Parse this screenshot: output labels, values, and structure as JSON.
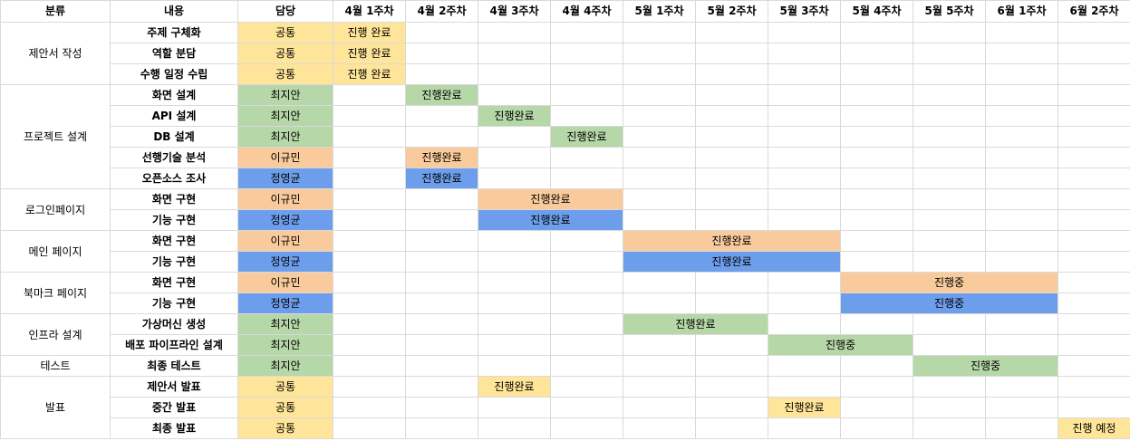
{
  "headers": [
    "분류",
    "내용",
    "담당",
    "4월 1주차",
    "4월 2주차",
    "4월 3주차",
    "4월 4주차",
    "5월 1주차",
    "5월 2주차",
    "5월 3주차",
    "5월 4주차",
    "5월 5주차",
    "6월 1주차",
    "6월 2주차"
  ],
  "colors": {
    "공통": "#ffe599",
    "최지안": "#b6d7a8",
    "이규민": "#f9cb9c",
    "정영균": "#6d9eeb"
  },
  "groups": [
    {
      "name": "제안서 작성",
      "tasks": [
        {
          "name": "주제 구체화",
          "owner": "공통",
          "start": 0,
          "span": 1,
          "status": "진행 완료"
        },
        {
          "name": "역할 분담",
          "owner": "공통",
          "start": 0,
          "span": 1,
          "status": "진행 완료"
        },
        {
          "name": "수행 일정 수립",
          "owner": "공통",
          "start": 0,
          "span": 1,
          "status": "진행 완료"
        }
      ]
    },
    {
      "name": "프로젝트 설계",
      "tasks": [
        {
          "name": "화면 설계",
          "owner": "최지안",
          "start": 1,
          "span": 1,
          "status": "진행완료"
        },
        {
          "name": "API 설계",
          "owner": "최지안",
          "start": 2,
          "span": 1,
          "status": "진행완료"
        },
        {
          "name": "DB 설계",
          "owner": "최지안",
          "start": 3,
          "span": 1,
          "status": "진행완료"
        },
        {
          "name": "선행기술 분석",
          "owner": "이규민",
          "start": 1,
          "span": 1,
          "status": "진행완료"
        },
        {
          "name": "오픈소스 조사",
          "owner": "정영균",
          "start": 1,
          "span": 1,
          "status": "진행완료"
        }
      ]
    },
    {
      "name": "로그인페이지",
      "tasks": [
        {
          "name": "화면 구현",
          "owner": "이규민",
          "start": 2,
          "span": 2,
          "status": "진행완료"
        },
        {
          "name": "기능 구현",
          "owner": "정영균",
          "start": 2,
          "span": 2,
          "status": "진행완료"
        }
      ]
    },
    {
      "name": "메인 페이지",
      "tasks": [
        {
          "name": "화면 구현",
          "owner": "이규민",
          "start": 4,
          "span": 3,
          "status": "진행완료"
        },
        {
          "name": "기능 구현",
          "owner": "정영균",
          "start": 4,
          "span": 3,
          "status": "진행완료"
        }
      ]
    },
    {
      "name": "북마크 페이지",
      "tasks": [
        {
          "name": "화면 구현",
          "owner": "이규민",
          "start": 7,
          "span": 3,
          "status": "진행중"
        },
        {
          "name": "기능 구현",
          "owner": "정영균",
          "start": 7,
          "span": 3,
          "status": "진행중"
        }
      ]
    },
    {
      "name": "인프라 설계",
      "tasks": [
        {
          "name": "가상머신 생성",
          "owner": "최지안",
          "start": 4,
          "span": 2,
          "status": "진행완료"
        },
        {
          "name": "배포 파이프라인 설계",
          "owner": "최지안",
          "start": 6,
          "span": 2,
          "status": "진행중"
        }
      ]
    },
    {
      "name": "테스트",
      "tasks": [
        {
          "name": "최종 테스트",
          "owner": "최지안",
          "start": 8,
          "span": 2,
          "status": "진행중"
        }
      ]
    },
    {
      "name": "발표",
      "tasks": [
        {
          "name": "제안서 발표",
          "owner": "공통",
          "start": 2,
          "span": 1,
          "status": "진행완료"
        },
        {
          "name": "중간 발표",
          "owner": "공통",
          "start": 6,
          "span": 1,
          "status": "진행완료"
        },
        {
          "name": "최종 발표",
          "owner": "공통",
          "start": 10,
          "span": 1,
          "status": "진행 예정"
        }
      ]
    }
  ]
}
